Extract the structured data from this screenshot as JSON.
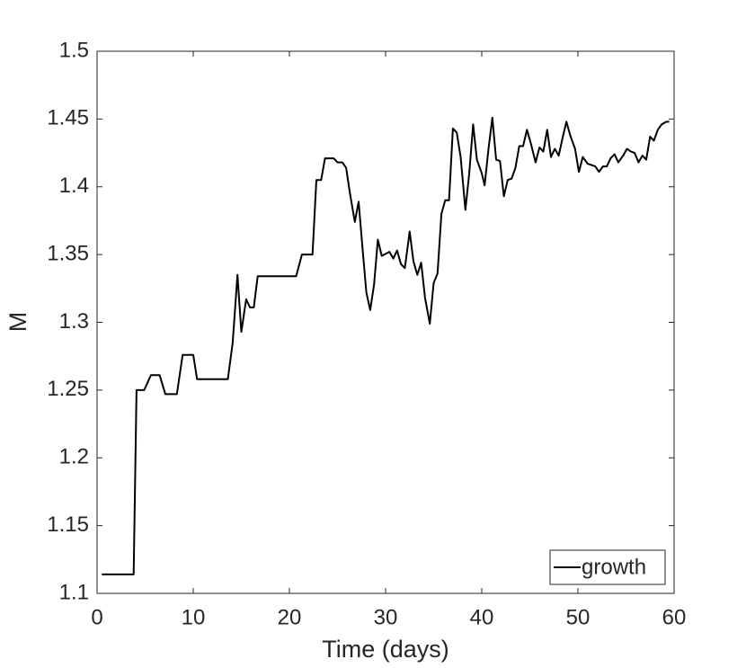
{
  "chart_data": {
    "type": "line",
    "x_label": "Time (days)",
    "y_label": "M",
    "x": [
      0.5,
      3.8,
      4.1,
      4.9,
      5.6,
      6.5,
      7.1,
      8.3,
      8.9,
      10.0,
      10.4,
      13.6,
      14.1,
      14.6,
      15.0,
      15.5,
      15.9,
      16.3,
      16.7,
      20.7,
      21.3,
      22.4,
      22.8,
      23.3,
      23.7,
      24.6,
      25.0,
      25.5,
      25.9,
      26.3,
      26.8,
      27.2,
      27.6,
      28.0,
      28.4,
      28.8,
      29.2,
      29.6,
      30.4,
      30.8,
      31.2,
      31.6,
      32.0,
      32.5,
      32.9,
      33.3,
      33.7,
      34.1,
      34.6,
      35.0,
      35.4,
      35.8,
      36.2,
      36.6,
      37.0,
      37.4,
      37.8,
      38.3,
      38.7,
      39.1,
      39.5,
      40.0,
      40.3,
      40.7,
      41.1,
      41.5,
      41.9,
      42.3,
      42.7,
      43.1,
      43.5,
      43.9,
      44.3,
      44.7,
      45.1,
      45.6,
      46.0,
      46.4,
      46.8,
      47.2,
      47.6,
      48.0,
      48.4,
      48.8,
      49.2,
      49.7,
      50.1,
      50.5,
      51.0,
      51.4,
      51.8,
      52.2,
      52.6,
      53.0,
      53.4,
      53.8,
      54.2,
      54.7,
      55.1,
      55.5,
      55.9,
      56.3,
      56.7,
      57.1,
      57.5,
      57.9,
      58.3,
      58.7,
      59.2,
      59.5
    ],
    "series": [
      {
        "name": "growth",
        "color": "#000000",
        "values": [
          1.114,
          1.114,
          1.25,
          1.25,
          1.261,
          1.261,
          1.247,
          1.247,
          1.276,
          1.276,
          1.258,
          1.258,
          1.285,
          1.335,
          1.293,
          1.317,
          1.311,
          1.311,
          1.334,
          1.334,
          1.35,
          1.35,
          1.405,
          1.405,
          1.421,
          1.421,
          1.418,
          1.418,
          1.414,
          1.395,
          1.374,
          1.389,
          1.355,
          1.322,
          1.309,
          1.328,
          1.361,
          1.349,
          1.352,
          1.347,
          1.353,
          1.343,
          1.34,
          1.367,
          1.345,
          1.335,
          1.344,
          1.318,
          1.299,
          1.329,
          1.336,
          1.38,
          1.39,
          1.39,
          1.443,
          1.44,
          1.422,
          1.383,
          1.41,
          1.446,
          1.42,
          1.41,
          1.401,
          1.428,
          1.451,
          1.42,
          1.419,
          1.393,
          1.405,
          1.406,
          1.414,
          1.43,
          1.43,
          1.442,
          1.432,
          1.418,
          1.429,
          1.426,
          1.442,
          1.422,
          1.428,
          1.423,
          1.436,
          1.448,
          1.438,
          1.428,
          1.411,
          1.422,
          1.417,
          1.416,
          1.415,
          1.411,
          1.415,
          1.415,
          1.421,
          1.424,
          1.418,
          1.423,
          1.428,
          1.426,
          1.425,
          1.418,
          1.423,
          1.42,
          1.437,
          1.434,
          1.442,
          1.446,
          1.448,
          1.448
        ]
      }
    ],
    "xlim": [
      0,
      60
    ],
    "xticks": [
      0,
      10,
      20,
      30,
      40,
      50,
      60
    ],
    "ylim": [
      1.1,
      1.5
    ],
    "yticks": [
      1.1,
      1.15,
      1.2,
      1.25,
      1.3,
      1.35,
      1.4,
      1.45,
      1.5
    ],
    "grid": false,
    "legend": "lower right"
  }
}
